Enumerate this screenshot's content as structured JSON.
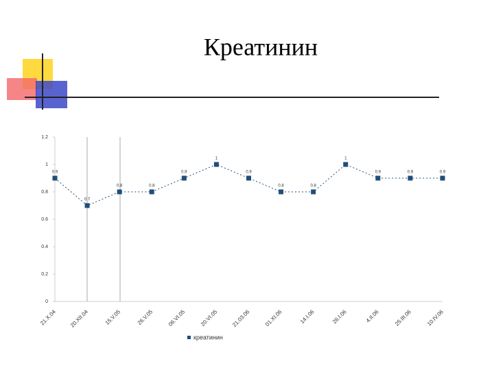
{
  "chart_data": {
    "type": "line",
    "title": "Креатинин",
    "categories": [
      "21.X.04",
      "20.XII.04",
      "15.V.05",
      "26.V.05",
      "06.VI.05",
      "20.VI.05",
      "21.03.06",
      "01.XI.06",
      "14.I.06",
      "26.I.06",
      "4.II.06",
      "25.III.06",
      "10.IV.06"
    ],
    "series": [
      {
        "name": "креатинин",
        "color": "#1f4e79",
        "values": [
          0.9,
          0.7,
          0.8,
          0.8,
          0.9,
          1,
          0.9,
          0.8,
          0.8,
          1,
          0.9,
          0.9,
          0.9
        ]
      }
    ],
    "ylim": [
      0,
      1.2
    ],
    "yticks": [
      0,
      0.2,
      0.4,
      0.6,
      0.8,
      1,
      1.2
    ],
    "legend": "bottom"
  }
}
